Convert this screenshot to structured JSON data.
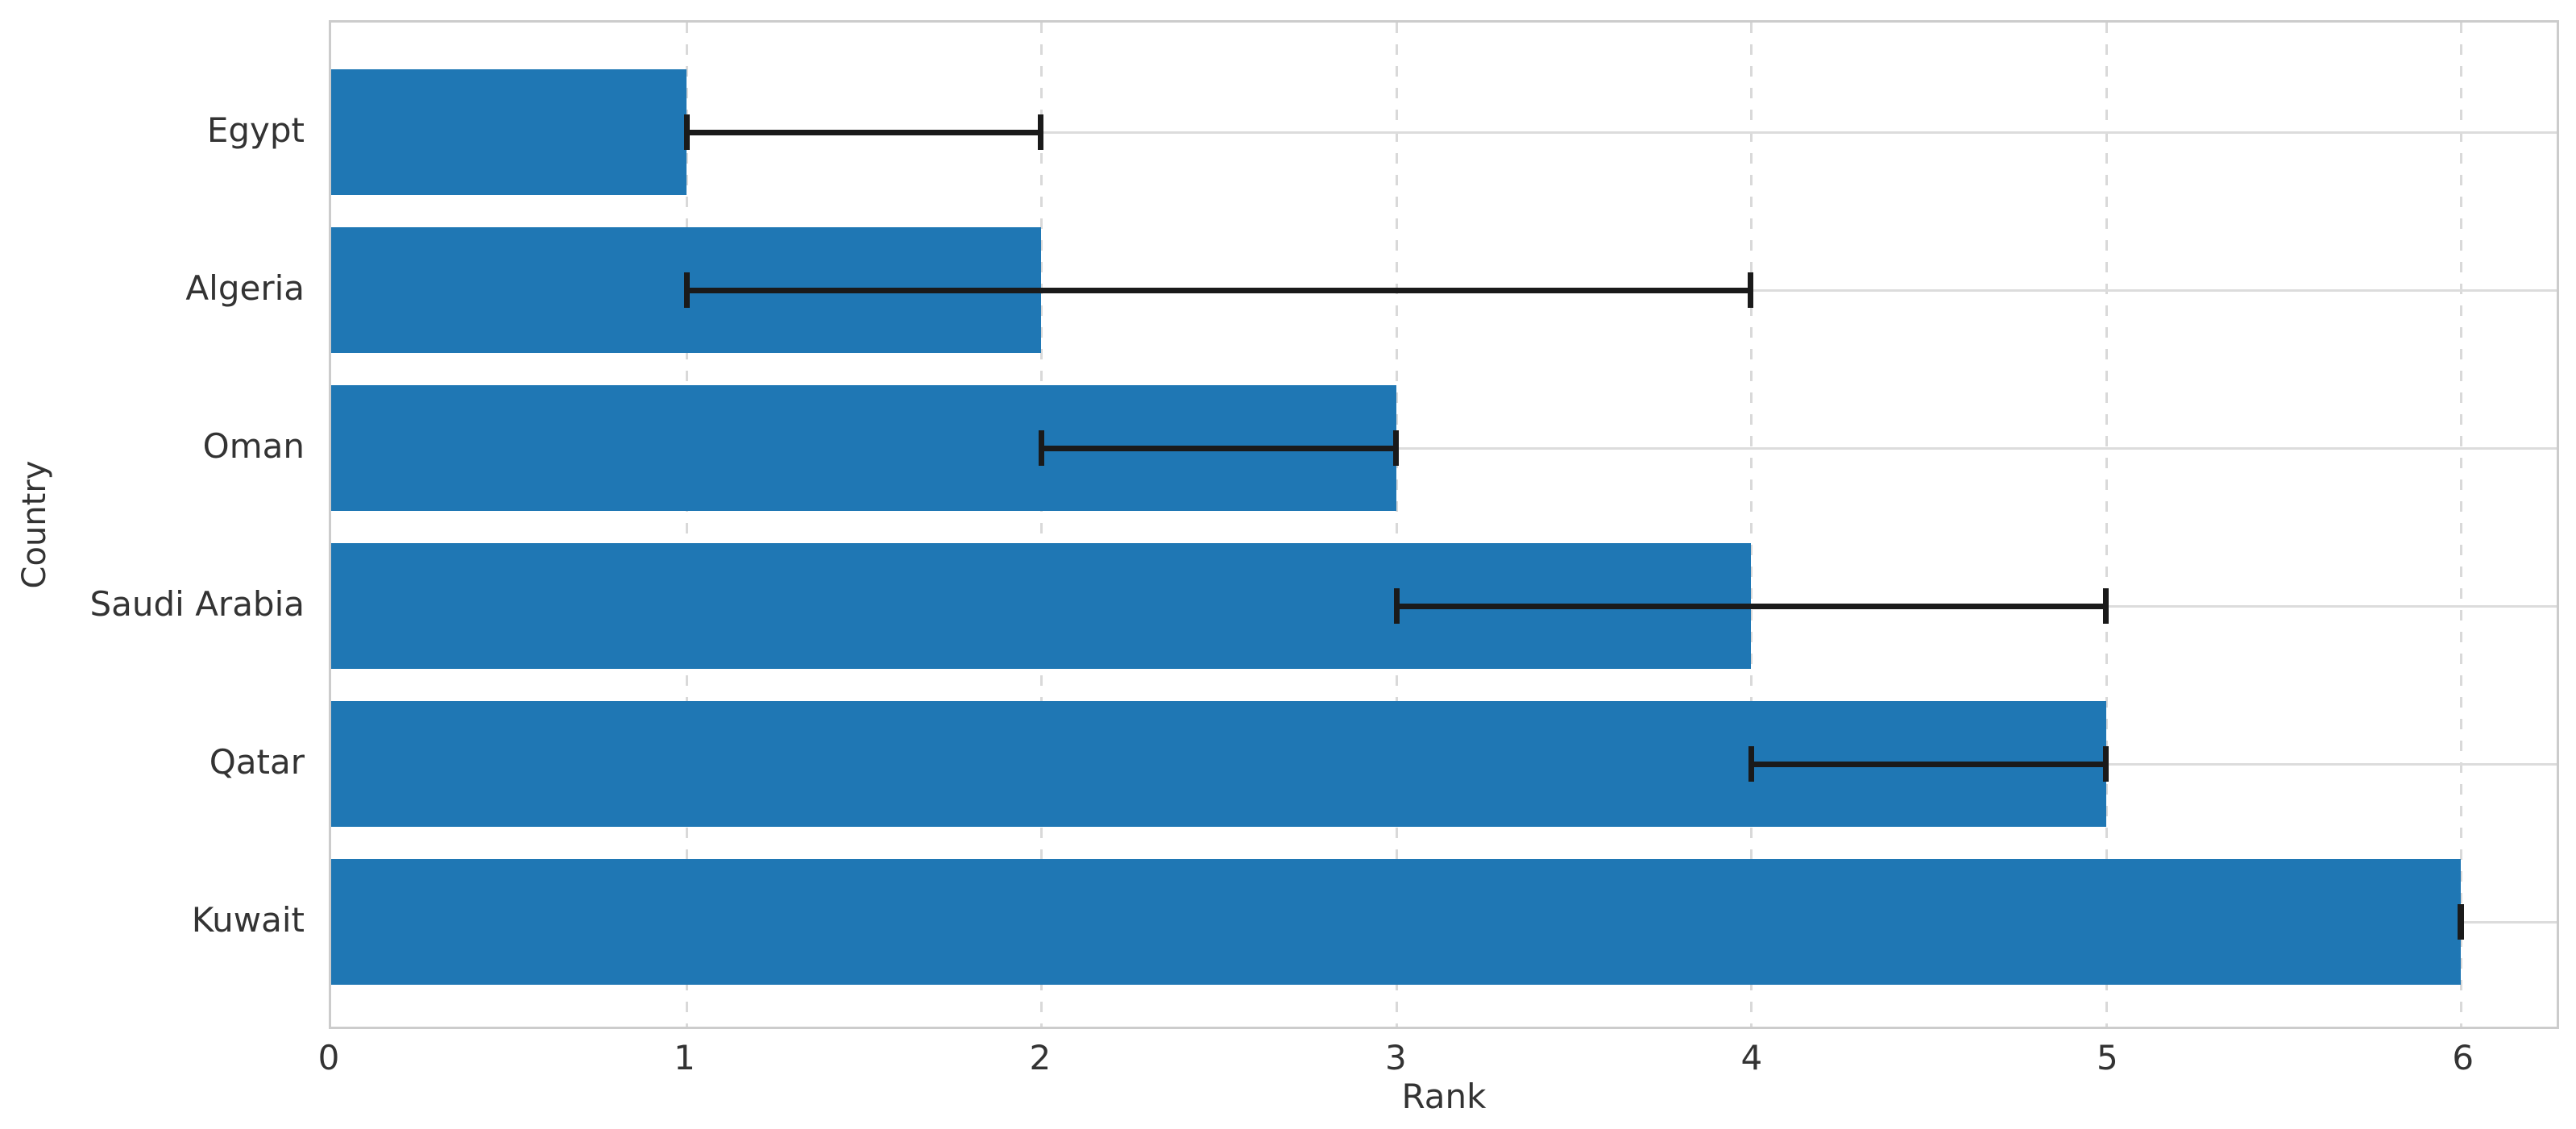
{
  "figure": {
    "background_color": "#ffffff",
    "plot_border_color": "#cccccc"
  },
  "chart_data": {
    "type": "bar",
    "orientation": "horizontal",
    "title": "",
    "xlabel": "Rank",
    "ylabel": "Country",
    "categories": [
      "Egypt",
      "Algeria",
      "Oman",
      "Saudi Arabia",
      "Qatar",
      "Kuwait"
    ],
    "values": [
      1,
      2,
      3,
      4,
      5,
      6
    ],
    "error_ranges": [
      [
        1,
        2
      ],
      [
        1,
        4
      ],
      [
        2,
        3
      ],
      [
        3,
        5
      ],
      [
        4,
        5
      ],
      [
        6,
        6
      ]
    ],
    "xticks": [
      "0",
      "1",
      "2",
      "3",
      "4",
      "5",
      "6"
    ],
    "xtick_values": [
      0,
      1,
      2,
      3,
      4,
      5,
      6
    ],
    "xlim": [
      0,
      6.27
    ],
    "grid": true,
    "gridline_style_vertical": "dashed",
    "gridline_style_horizontal": "solid",
    "legend": null,
    "bar_color": "#1f77b4",
    "error_bar_color": "#1a1a1a",
    "grid_color": "#d9d9d9",
    "text_color": "#333333"
  }
}
